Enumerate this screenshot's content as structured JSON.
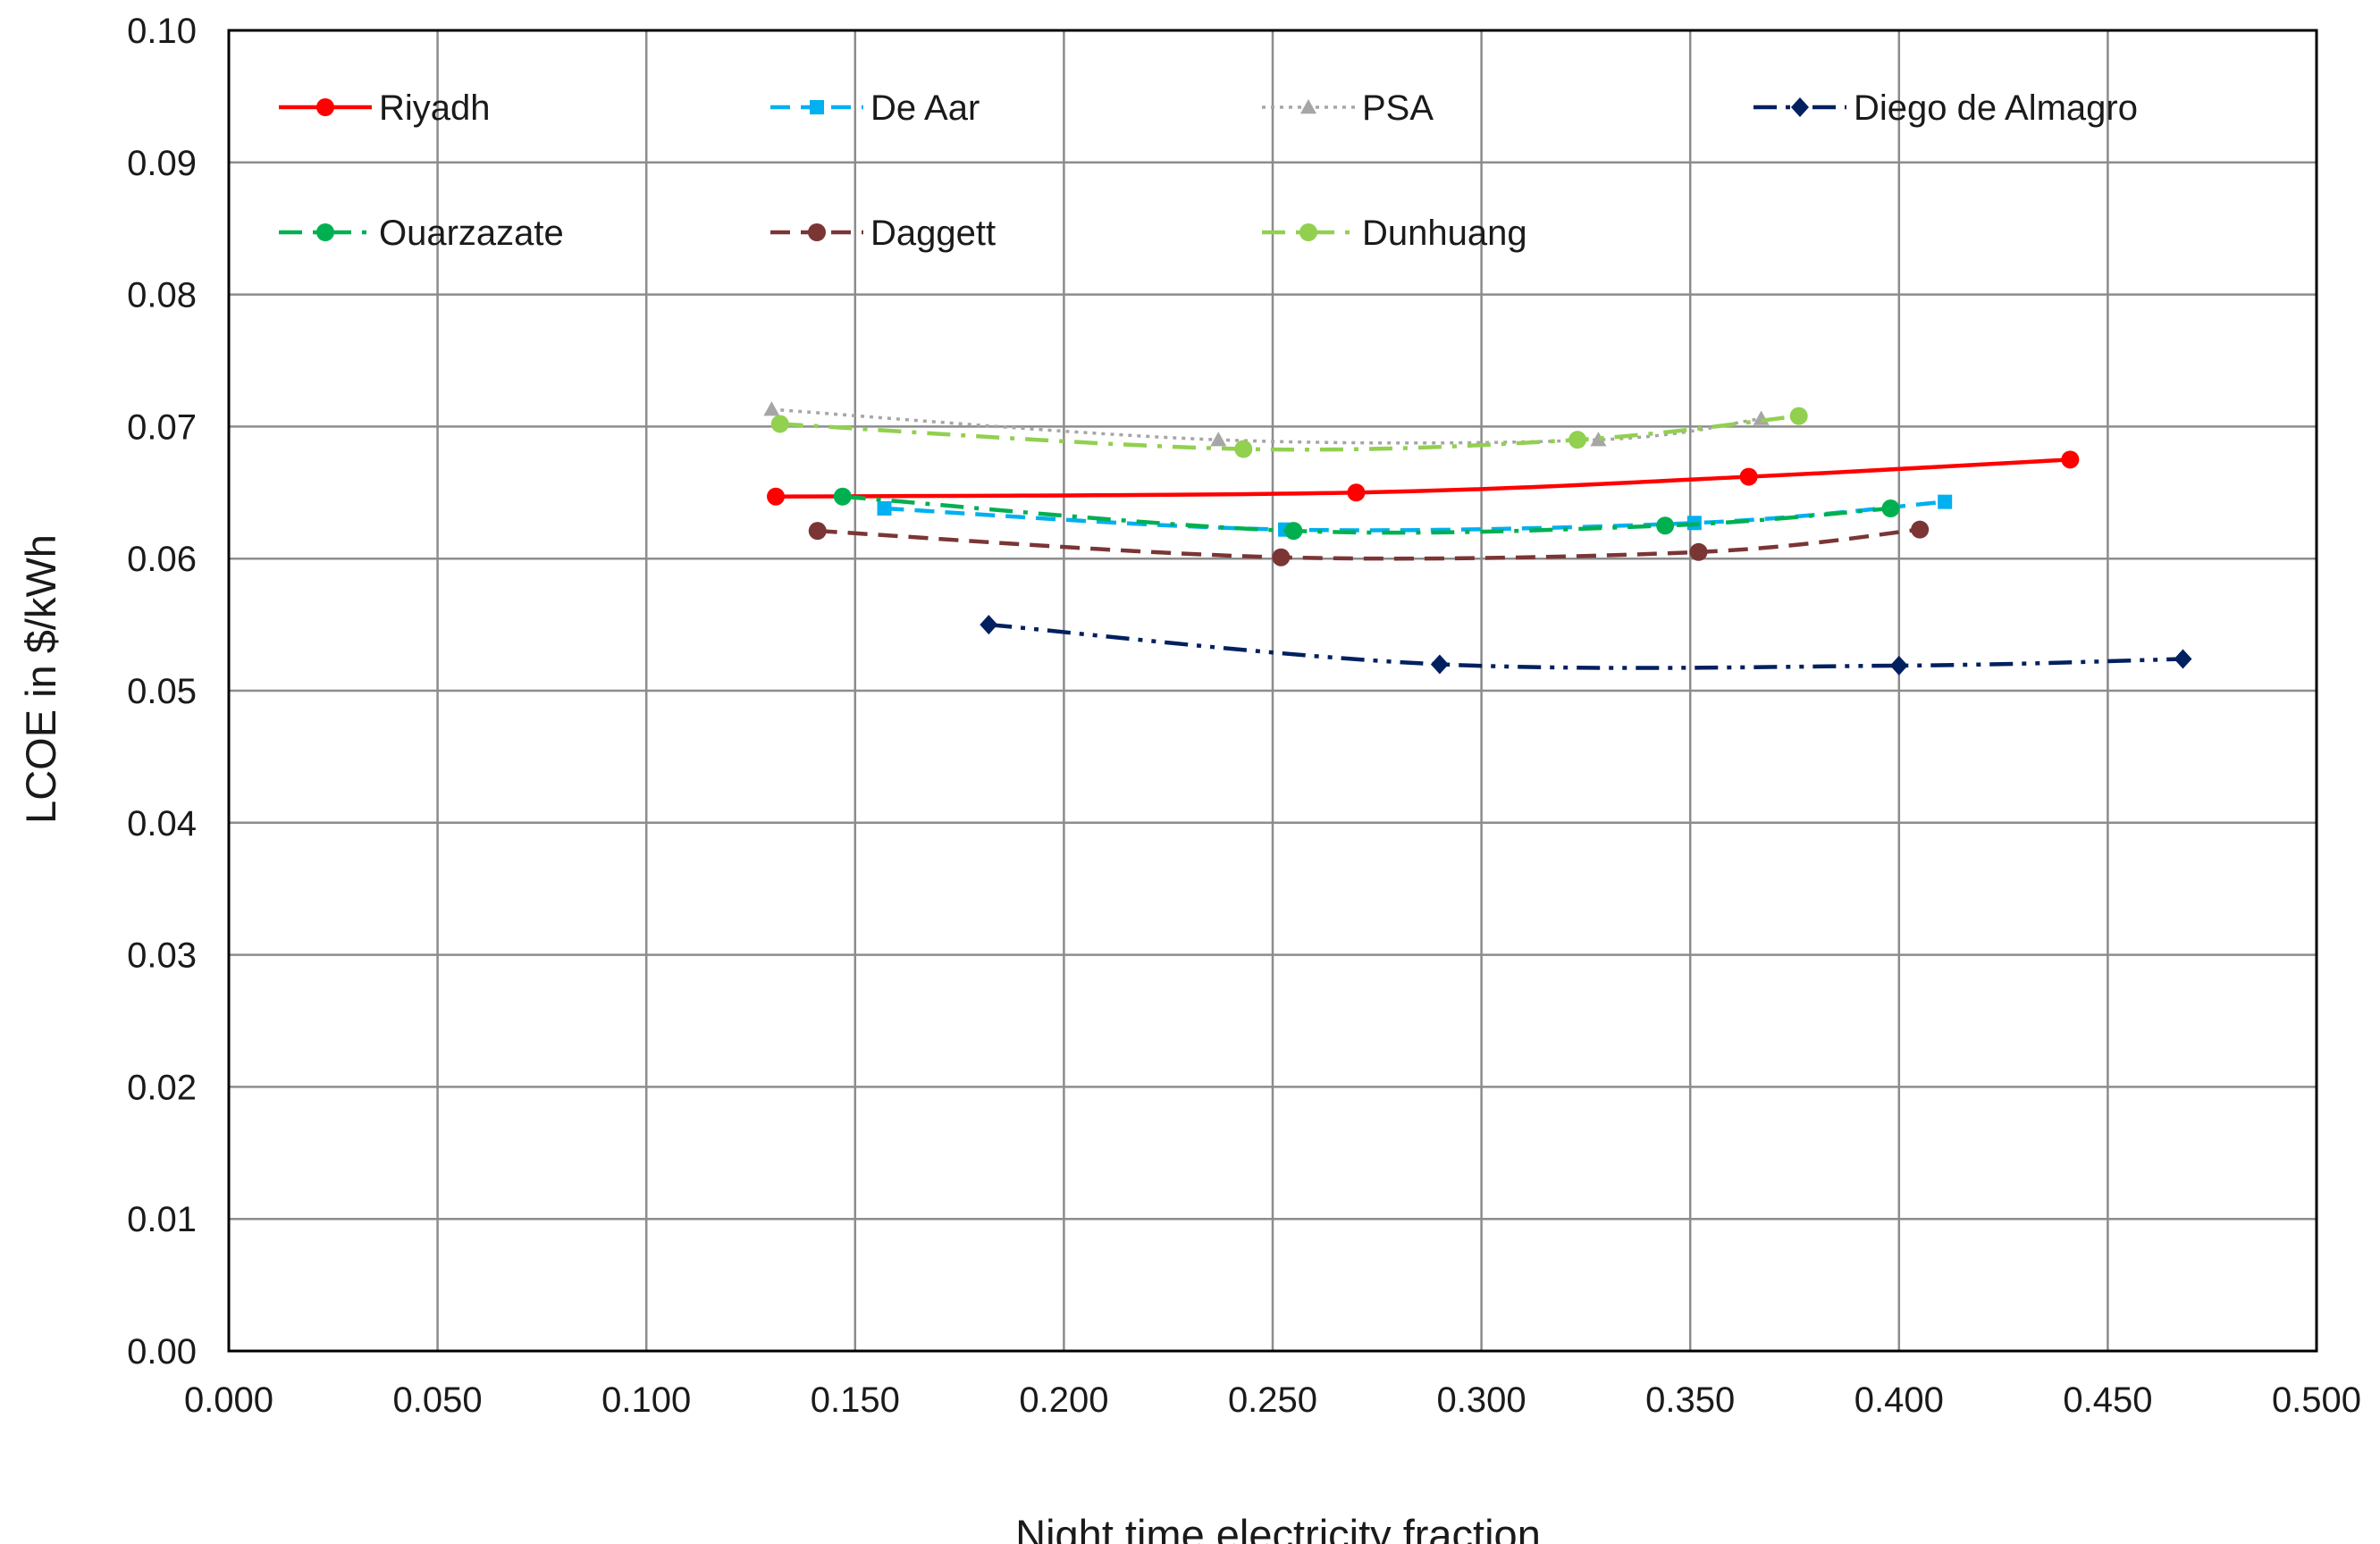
{
  "chart_data": {
    "type": "line",
    "title": "",
    "xlabel": "Night time electricity fraction",
    "ylabel": "LCOE in $/kWh",
    "xlim": [
      0,
      0.5
    ],
    "ylim": [
      0,
      0.1
    ],
    "x_ticks": [
      "0.000",
      "0.050",
      "0.100",
      "0.150",
      "0.200",
      "0.250",
      "0.300",
      "0.350",
      "0.400",
      "0.450",
      "0.500"
    ],
    "y_ticks": [
      "0.00",
      "0.01",
      "0.02",
      "0.03",
      "0.04",
      "0.05",
      "0.06",
      "0.07",
      "0.08",
      "0.09",
      "0.10"
    ],
    "grid": true,
    "legend_position": "top",
    "series": [
      {
        "name": "Riyadh",
        "color": "#ff0000",
        "marker": "circle",
        "dash": "solid",
        "points": [
          [
            0.131,
            0.0647
          ],
          [
            0.27,
            0.065
          ],
          [
            0.364,
            0.0662
          ],
          [
            0.441,
            0.0675
          ]
        ]
      },
      {
        "name": "De Aar",
        "color": "#00b0f0",
        "marker": "square",
        "dash": "dash",
        "points": [
          [
            0.157,
            0.0638
          ],
          [
            0.253,
            0.0622
          ],
          [
            0.351,
            0.0627
          ],
          [
            0.411,
            0.0643
          ]
        ]
      },
      {
        "name": "PSA",
        "color": "#a6a6a6",
        "marker": "triangle",
        "dash": "dot",
        "points": [
          [
            0.13,
            0.0713
          ],
          [
            0.237,
            0.069
          ],
          [
            0.328,
            0.069
          ],
          [
            0.367,
            0.0706
          ]
        ]
      },
      {
        "name": "Diego de Almagro",
        "color": "#002060",
        "marker": "diamond",
        "dash": "dashdotdot",
        "points": [
          [
            0.182,
            0.055
          ],
          [
            0.29,
            0.052
          ],
          [
            0.4,
            0.0519
          ],
          [
            0.468,
            0.0524
          ]
        ]
      },
      {
        "name": "Ouarzazate",
        "color": "#00b050",
        "marker": "circle",
        "dash": "dashdot",
        "points": [
          [
            0.147,
            0.0647
          ],
          [
            0.255,
            0.0621
          ],
          [
            0.344,
            0.0625
          ],
          [
            0.398,
            0.0638
          ]
        ]
      },
      {
        "name": "Daggett",
        "color": "#7b3535",
        "marker": "circle",
        "dash": "dash",
        "points": [
          [
            0.141,
            0.0621
          ],
          [
            0.252,
            0.0601
          ],
          [
            0.352,
            0.0605
          ],
          [
            0.405,
            0.0622
          ]
        ]
      },
      {
        "name": "Dunhuang",
        "color": "#92d050",
        "marker": "circle",
        "dash": "dashdot",
        "points": [
          [
            0.132,
            0.0702
          ],
          [
            0.243,
            0.0683
          ],
          [
            0.323,
            0.069
          ],
          [
            0.376,
            0.0708
          ]
        ]
      }
    ]
  }
}
